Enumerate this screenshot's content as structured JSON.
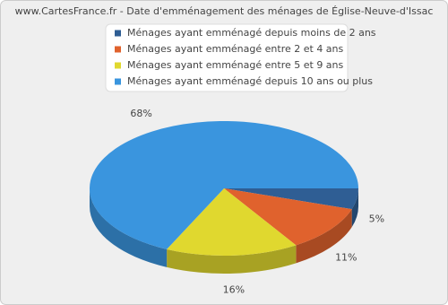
{
  "chart_data": {
    "type": "pie",
    "title": "www.CartesFrance.fr - Date d'emménagement des ménages de Église-Neuve-d'Issac",
    "categories": [
      "Ménages ayant emménagé depuis moins de 2 ans",
      "Ménages ayant emménagé entre 2 et 4 ans",
      "Ménages ayant emménagé entre 5 et 9 ans",
      "Ménages ayant emménagé depuis 10 ans ou plus"
    ],
    "values": [
      5,
      11,
      16,
      68
    ],
    "value_labels": [
      "5%",
      "11%",
      "16%",
      "68%"
    ],
    "colors": [
      "#2f5e94",
      "#e0622d",
      "#e0d82f",
      "#3a95de"
    ]
  }
}
